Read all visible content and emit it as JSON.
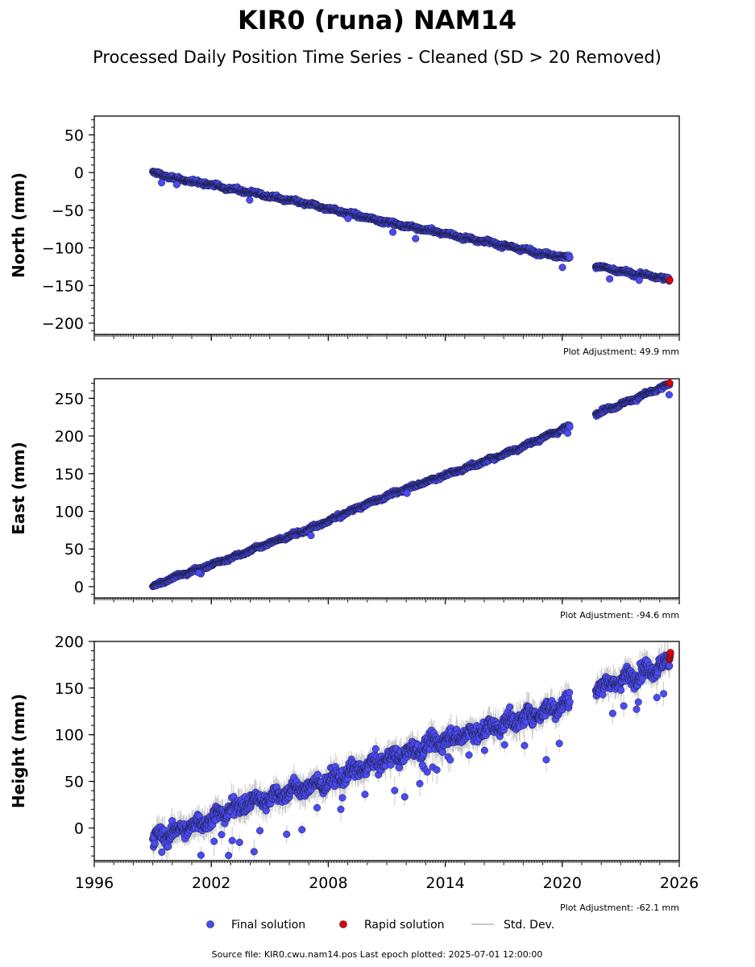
{
  "header": {
    "title": "KIR0 (runa) NAM14",
    "subtitle": "Processed Daily Position Time Series - Cleaned (SD > 20 Removed)"
  },
  "legend": {
    "final_label": "Final solution",
    "rapid_label": "Rapid solution",
    "std_label": "Std. Dev."
  },
  "footer": {
    "source": "Source file: KIR0.cwu.nam14.pos  Last epoch plotted: 2025-07-01 12:00:00"
  },
  "colors": {
    "final": "#4b4bf0",
    "final_edge": "#1a1a40",
    "rapid": "#e00000",
    "stddev": "#c8c8c8"
  },
  "chart_data": [
    {
      "type": "scatter",
      "ylabel": "North (mm)",
      "adjustment": "Plot Adjustment: 49.9 mm",
      "xlim": [
        1996,
        2026
      ],
      "ylim": [
        -215,
        75
      ],
      "yticks": [
        50,
        0,
        -50,
        -100,
        -150,
        -200
      ],
      "xticks": [
        1996,
        2002,
        2008,
        2014,
        2020,
        2026
      ],
      "show_x_labels": false,
      "gaps": [
        [
          2020.4,
          2021.7
        ]
      ],
      "series": [
        {
          "name": "Final solution",
          "x": [
            1999.0,
            2000.0,
            2001.0,
            2002.0,
            2003.0,
            2004.0,
            2005.0,
            2006.0,
            2007.0,
            2008.0,
            2009.0,
            2010.0,
            2011.0,
            2012.0,
            2013.0,
            2014.0,
            2015.0,
            2016.0,
            2017.0,
            2018.0,
            2019.0,
            2020.4,
            2021.7,
            2022.5,
            2023.5,
            2024.5,
            2025.5
          ],
          "values": [
            0,
            -7,
            -12,
            -16,
            -22,
            -26,
            -32,
            -37,
            -42,
            -48,
            -54,
            -60,
            -66,
            -71,
            -76,
            -81,
            -87,
            -91,
            -97,
            -102,
            -108,
            -113,
            -123,
            -129,
            -134,
            -137,
            -142
          ]
        },
        {
          "name": "Rapid solution",
          "x": [
            2025.5
          ],
          "values": [
            -143
          ]
        }
      ],
      "noise": 3,
      "outliers": 10
    },
    {
      "type": "scatter",
      "ylabel": "East (mm)",
      "adjustment": "Plot Adjustment: -94.6 mm",
      "xlim": [
        1996,
        2026
      ],
      "ylim": [
        -15,
        276
      ],
      "yticks": [
        250,
        200,
        150,
        100,
        50,
        0
      ],
      "xticks": [
        1996,
        2002,
        2008,
        2014,
        2020,
        2026
      ],
      "show_x_labels": false,
      "gaps": [
        [
          2020.4,
          2021.7
        ]
      ],
      "series": [
        {
          "name": "Final solution",
          "x": [
            1999.0,
            2000.0,
            2001.0,
            2002.0,
            2003.0,
            2004.0,
            2005.0,
            2006.0,
            2007.0,
            2008.0,
            2009.0,
            2010.0,
            2011.0,
            2012.0,
            2013.0,
            2014.0,
            2015.0,
            2016.0,
            2017.0,
            2018.0,
            2019.0,
            2020.4,
            2021.7,
            2022.5,
            2023.5,
            2024.5,
            2025.5
          ],
          "values": [
            0,
            12,
            20,
            29,
            38,
            48,
            58,
            67,
            76,
            87,
            99,
            110,
            120,
            130,
            139,
            148,
            157,
            166,
            176,
            186,
            198,
            213,
            230,
            237,
            247,
            258,
            268
          ]
        },
        {
          "name": "Rapid solution",
          "x": [
            2025.5
          ],
          "values": [
            270
          ]
        }
      ],
      "noise": 3,
      "outliers": 6
    },
    {
      "type": "scatter",
      "ylabel": "Height (mm)",
      "adjustment": "Plot Adjustment: -62.1 mm",
      "xlim": [
        1996,
        2026
      ],
      "ylim": [
        -35,
        200
      ],
      "yticks": [
        200,
        150,
        100,
        50,
        0
      ],
      "xticks": [
        1996,
        2002,
        2008,
        2014,
        2020,
        2026
      ],
      "show_x_labels": true,
      "gaps": [
        [
          2020.4,
          2021.7
        ]
      ],
      "series": [
        {
          "name": "Final solution",
          "x": [
            1999.0,
            2000.0,
            2001.0,
            2002.0,
            2003.0,
            2004.0,
            2005.0,
            2006.0,
            2007.0,
            2008.0,
            2009.0,
            2010.0,
            2011.0,
            2012.0,
            2013.0,
            2014.0,
            2015.0,
            2016.0,
            2017.0,
            2018.0,
            2019.0,
            2020.4,
            2021.7,
            2022.5,
            2023.5,
            2024.5,
            2025.5
          ],
          "values": [
            -12,
            -5,
            2,
            10,
            20,
            28,
            32,
            40,
            44,
            50,
            58,
            66,
            74,
            80,
            88,
            95,
            100,
            105,
            112,
            118,
            125,
            135,
            150,
            155,
            162,
            170,
            178
          ]
        },
        {
          "name": "Rapid solution",
          "x": [
            2025.5
          ],
          "values": [
            185
          ]
        }
      ],
      "noise": 11,
      "outliers": 40
    }
  ]
}
